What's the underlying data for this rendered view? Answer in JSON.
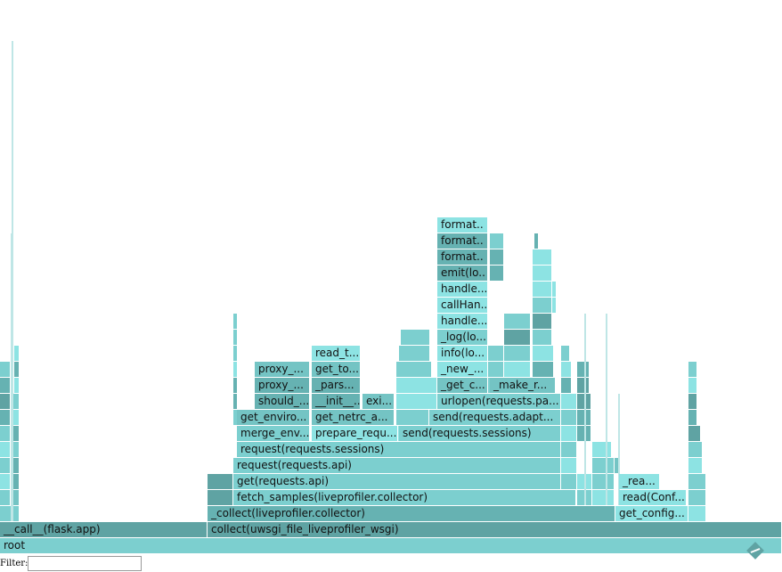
{
  "frames": [
    {
      "label": "root"
    },
    {
      "label": "__call__(flask.app)"
    },
    {
      "label": "collect(uwsgi_file_liveprofiler_wsgi)"
    },
    {
      "label": "_collect(liveprofiler.collector)"
    },
    {
      "label": "get_config..."
    },
    {
      "label": "fetch_samples(liveprofiler.collector)"
    },
    {
      "label": "read(Conf..."
    },
    {
      "label": "get(requests.api)"
    },
    {
      "label": "_rea..."
    },
    {
      "label": "request(requests.api)"
    },
    {
      "label": "request(requests.sessions)"
    },
    {
      "label": "merge_env..."
    },
    {
      "label": "prepare_requ..."
    },
    {
      "label": "send(requests.sessions)"
    },
    {
      "label": "get_enviro..."
    },
    {
      "label": "get_netrc_a..."
    },
    {
      "label": "send(requests.adapt..."
    },
    {
      "label": "should_..."
    },
    {
      "label": "__init__..."
    },
    {
      "label": "exi..."
    },
    {
      "label": "urlopen(requests.pa..."
    },
    {
      "label": "proxy_..."
    },
    {
      "label": "_pars..."
    },
    {
      "label": "_get_c..."
    },
    {
      "label": "_make_r..."
    },
    {
      "label": "proxy_..."
    },
    {
      "label": "get_to..."
    },
    {
      "label": "_new_..."
    },
    {
      "label": "read_t..."
    },
    {
      "label": "info(lo..."
    },
    {
      "label": "_log(lo..."
    },
    {
      "label": "handle..."
    },
    {
      "label": "callHan.."
    },
    {
      "label": "handle..."
    },
    {
      "label": "emit(lo.."
    },
    {
      "label": "format.."
    },
    {
      "label": "format.."
    },
    {
      "label": "format.."
    }
  ],
  "filter": {
    "label": "Filter:"
  }
}
